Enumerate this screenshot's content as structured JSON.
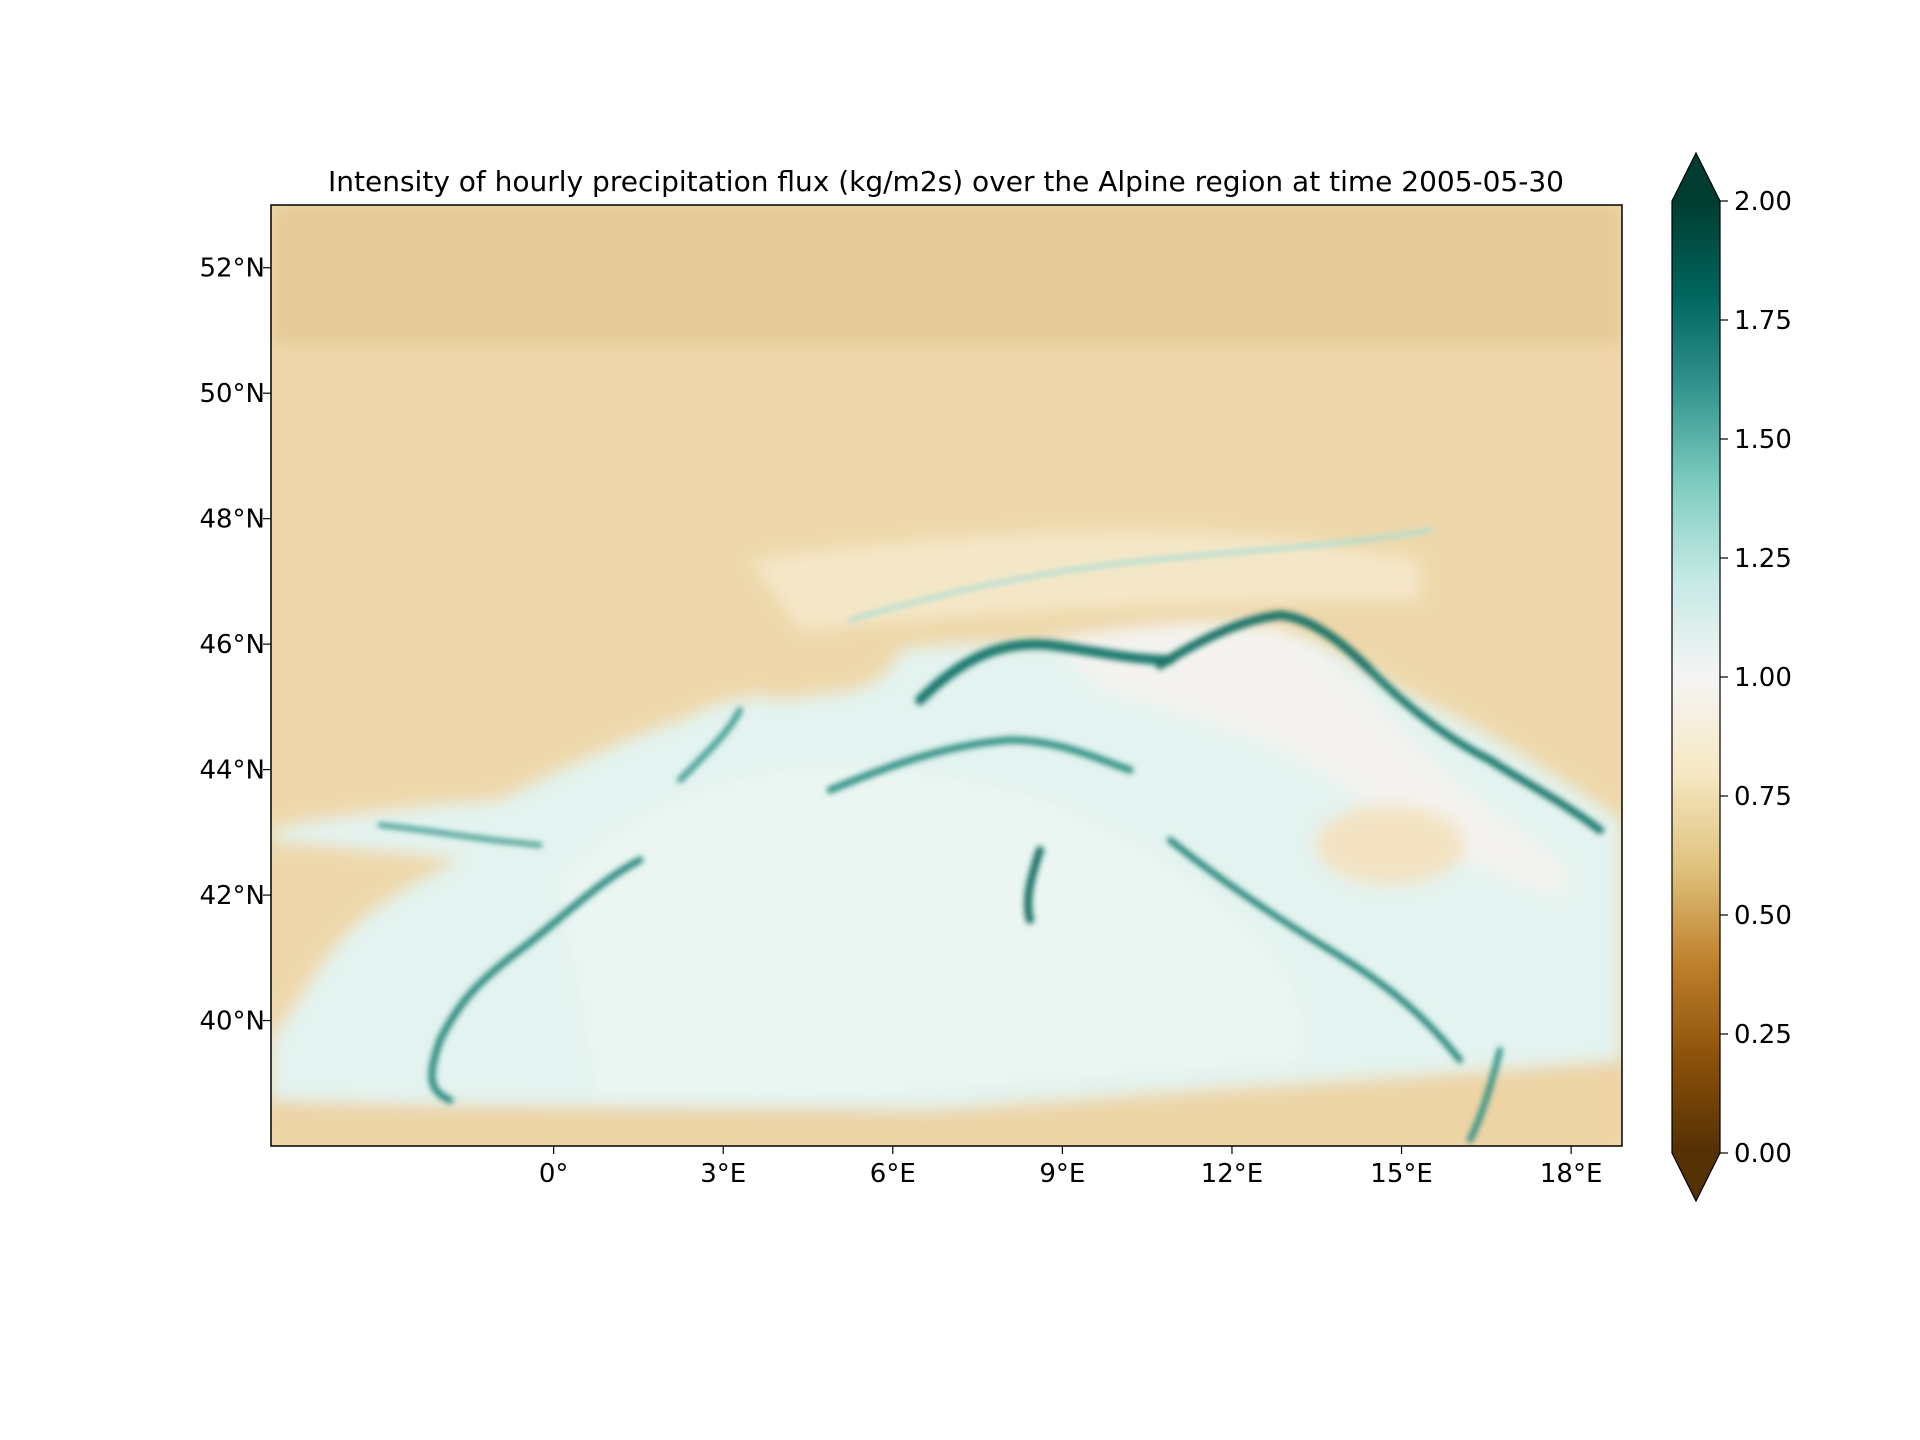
{
  "chart_data": {
    "type": "heatmap",
    "title": "Intensity of hourly precipitation flux (kg/m2s) over the Alpine region at time 2005-05-30",
    "xlabel": "",
    "ylabel": "",
    "xlim": [
      -5.0,
      18.9
    ],
    "ylim": [
      38.0,
      53.0
    ],
    "x_ticks": [
      0,
      3,
      6,
      9,
      12,
      15,
      18
    ],
    "x_tick_labels": [
      "0°",
      "3°E",
      "6°E",
      "9°E",
      "12°E",
      "15°E",
      "18°E"
    ],
    "y_ticks": [
      40,
      42,
      44,
      46,
      48,
      50,
      52
    ],
    "y_tick_labels": [
      "40°N",
      "42°N",
      "44°N",
      "46°N",
      "48°N",
      "50°N",
      "52°N"
    ],
    "colorbar": {
      "colormap": "BrBG",
      "range": [
        0.0,
        2.0
      ],
      "extend": "both",
      "ticks": [
        0.0,
        0.25,
        0.5,
        0.75,
        1.0,
        1.25,
        1.5,
        1.75,
        2.0
      ],
      "tick_labels": [
        "0.00",
        "0.25",
        "0.50",
        "0.75",
        "1.00",
        "1.25",
        "1.50",
        "1.75",
        "2.00"
      ]
    },
    "grid": false,
    "field_note": "values roughly 0.65-0.8 over land, 1.0-1.3 over the Mediterranean and Adriatic, up to ~1.8-2.0 along Alpine / Apennine / Dinaric coastal ridges"
  },
  "colors": {
    "low_land": "#e4c994",
    "mid_land": "#f1dfb8",
    "neutral": "#f3f2ee",
    "sea_light": "#d2ede8",
    "sea_mid": "#a8dcd2",
    "ridge": "#2f8f83",
    "ridge_dark": "#0d5f56"
  }
}
